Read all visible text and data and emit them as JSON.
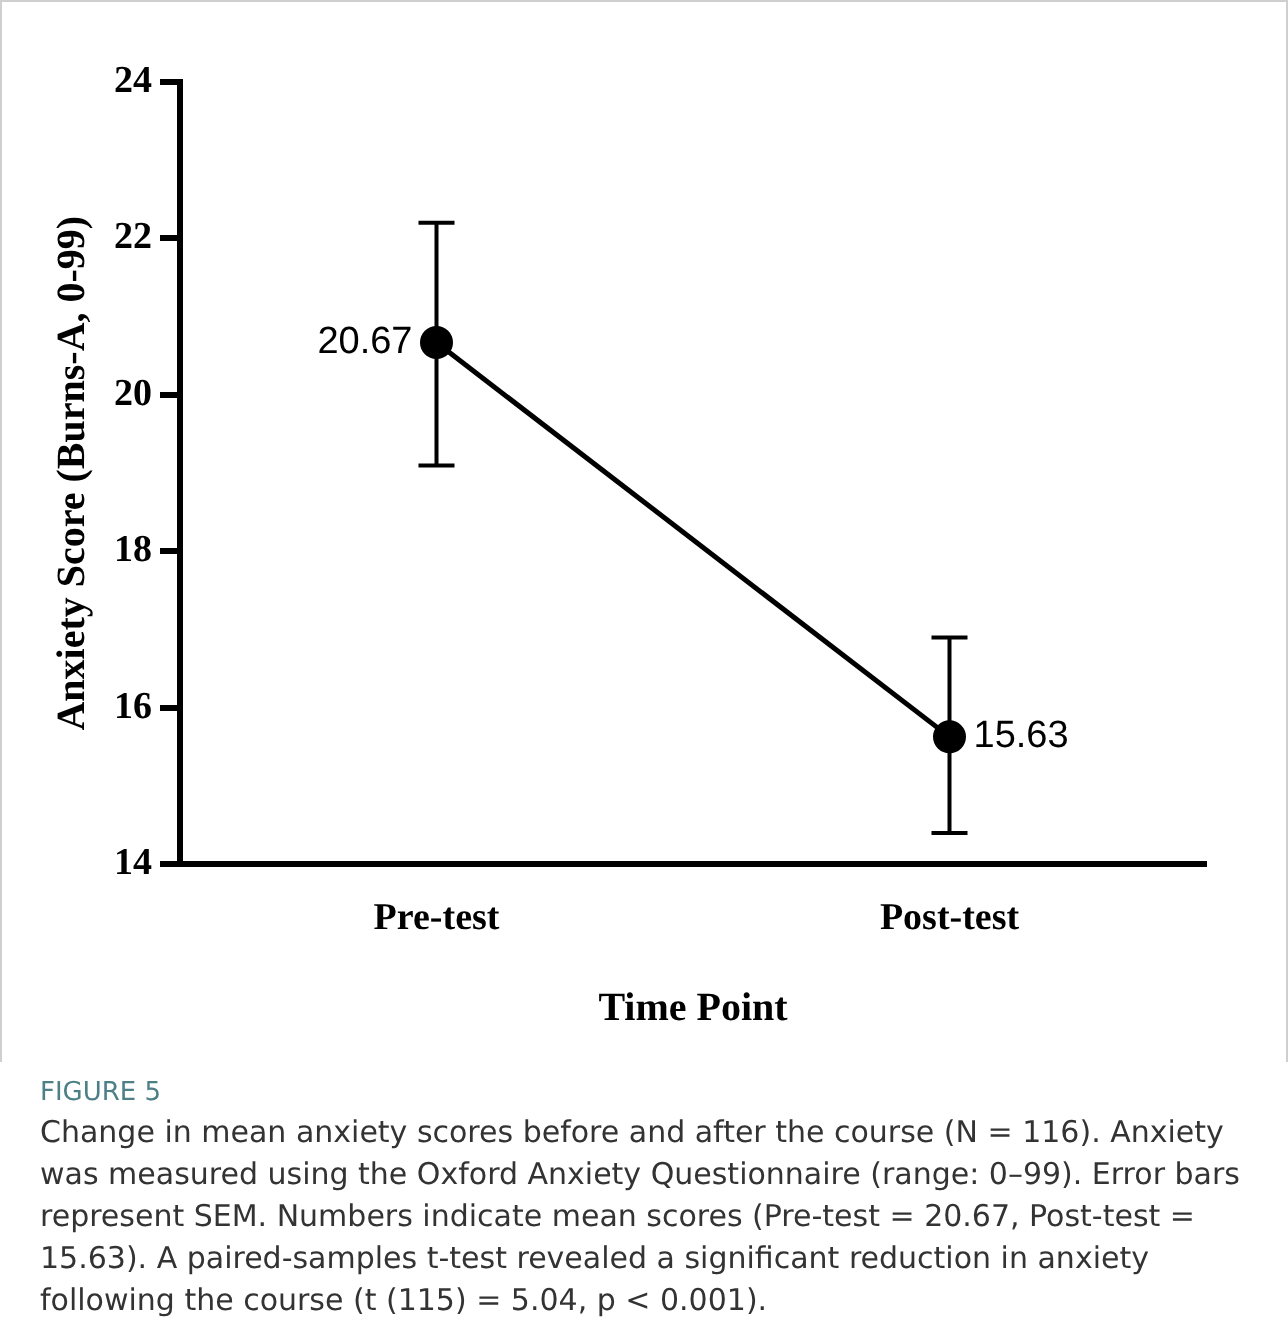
{
  "chart_data": {
    "type": "line",
    "xlabel": "Time Point",
    "ylabel": "Anxiety Score (Burns-A, 0-99)",
    "categories": [
      "Pre-test",
      "Post-test"
    ],
    "series": [
      {
        "color": "#000000",
        "values": [
          20.67,
          15.63
        ],
        "errors": [
          [
            19.1,
            22.2
          ],
          [
            14.4,
            16.9
          ]
        ]
      }
    ],
    "ylim": [
      14,
      24
    ],
    "yticks": [
      14,
      16,
      18,
      20,
      22,
      24
    ],
    "grid": false,
    "legend": false,
    "marker": "circle",
    "line_style": "solid",
    "data_labels": true,
    "annotations": [
      "FIGURE 5",
      "Change in mean anxiety scores before and after the course (N = 116). Anxiety was measured using the Oxford Anxiety Questionnaire (range: 0–99). Error bars represent SEM. Numbers indicate mean scores (Pre-test = 20.67, Post-test = 15.63). A paired-samples t-test revealed a significant reduction in anxiety following the course (t (115) = 5.04, p < 0.001)."
    ]
  }
}
